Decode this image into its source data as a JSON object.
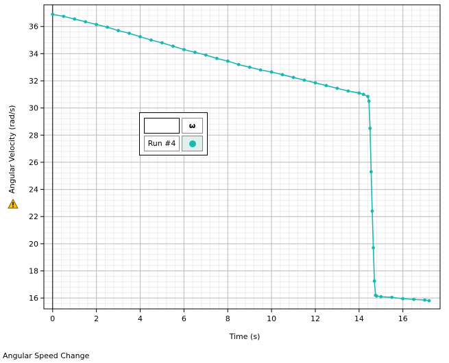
{
  "chart_data": {
    "type": "scatter",
    "title": "Angular Speed Change",
    "xlabel": "Time (s)",
    "ylabel": "Angular Velocity (rad/s)",
    "xlim": [
      -0.4,
      17.7
    ],
    "ylim": [
      15.2,
      37.6
    ],
    "xticks": [
      0,
      2,
      4,
      6,
      8,
      10,
      12,
      14,
      16
    ],
    "yticks": [
      16,
      18,
      20,
      22,
      24,
      26,
      28,
      30,
      32,
      34,
      36
    ],
    "grid": true,
    "legend_placement": "center-left",
    "series": [
      {
        "name": "Run #4",
        "color": "#1ab8b0",
        "x": [
          0.0,
          0.5,
          1.0,
          1.5,
          2.0,
          2.5,
          3.0,
          3.5,
          4.0,
          4.5,
          5.0,
          5.5,
          6.0,
          6.5,
          7.0,
          7.5,
          8.0,
          8.5,
          9.0,
          9.5,
          10.0,
          10.5,
          11.0,
          11.5,
          12.0,
          12.5,
          13.0,
          13.5,
          14.0,
          14.2,
          14.4,
          14.45,
          14.5,
          14.55,
          14.6,
          14.65,
          14.7,
          14.75,
          14.8,
          15.0,
          15.5,
          16.0,
          16.5,
          17.0,
          17.2
        ],
        "y": [
          36.9,
          36.75,
          36.55,
          36.35,
          36.15,
          35.95,
          35.7,
          35.5,
          35.25,
          35.0,
          34.8,
          34.55,
          34.3,
          34.1,
          33.9,
          33.65,
          33.45,
          33.2,
          33.0,
          32.8,
          32.65,
          32.45,
          32.25,
          32.05,
          31.85,
          31.65,
          31.45,
          31.25,
          31.1,
          31.0,
          30.85,
          30.5,
          28.5,
          25.3,
          22.4,
          19.7,
          17.25,
          16.2,
          16.15,
          16.1,
          16.05,
          15.95,
          15.9,
          15.85,
          15.8
        ]
      }
    ]
  },
  "legend": {
    "header_blank": "",
    "symbol_header": "ω",
    "run_label": "Run #4",
    "marker_color": "#1ab8b0"
  },
  "warning_icon": "warning-triangle-icon",
  "footer": {
    "title": "Angular Speed Change"
  }
}
